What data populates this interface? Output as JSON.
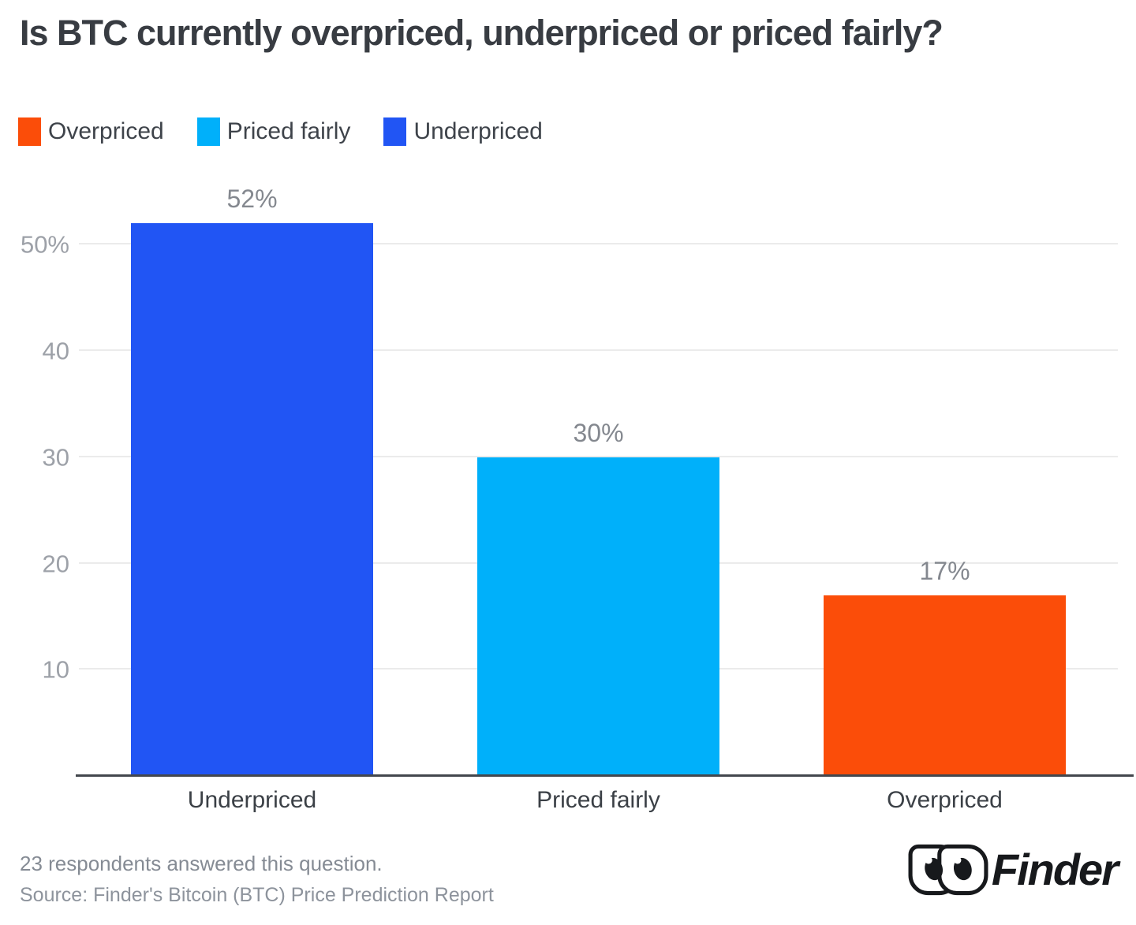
{
  "title": "Is BTC currently overpriced, underpriced or priced fairly?",
  "legend": [
    {
      "label": "Overpriced",
      "color": "#fb4d09"
    },
    {
      "label": "Priced fairly",
      "color": "#00b0fa"
    },
    {
      "label": "Underpriced",
      "color": "#2155f4"
    }
  ],
  "chart_data": {
    "type": "bar",
    "categories": [
      "Underpriced",
      "Priced fairly",
      "Overpriced"
    ],
    "values": [
      52,
      30,
      17
    ],
    "value_labels": [
      "52%",
      "30%",
      "17%"
    ],
    "colors": [
      "#2155f4",
      "#00b0fa",
      "#fb4d09"
    ],
    "title": "Is BTC currently overpriced, underpriced or priced fairly?",
    "xlabel": "",
    "ylabel": "",
    "ylim": [
      0,
      55
    ],
    "yticks": [
      {
        "value": 10,
        "label": "10"
      },
      {
        "value": 20,
        "label": "20"
      },
      {
        "value": 30,
        "label": "30"
      },
      {
        "value": 40,
        "label": "40"
      },
      {
        "value": 50,
        "label": "50%"
      }
    ],
    "grid": "horizontal",
    "legend_position": "top-left"
  },
  "footer": {
    "note": "23 respondents answered this question.",
    "source": "Source: Finder's Bitcoin (BTC) Price Prediction Report",
    "brand": "Finder"
  }
}
